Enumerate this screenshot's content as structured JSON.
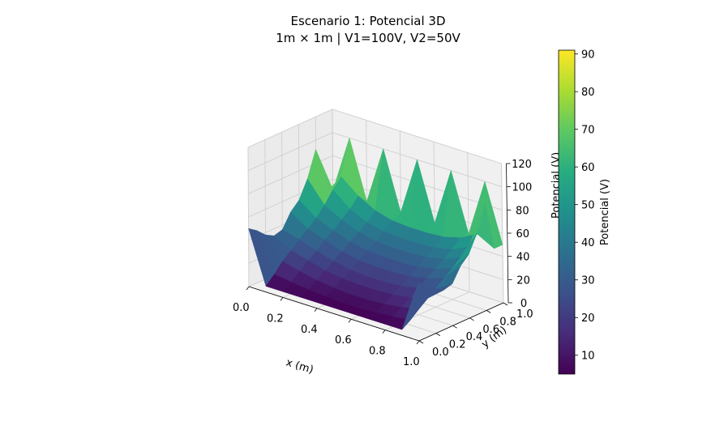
{
  "figure": {
    "title_line1": "Escenario 1: Potencial 3D",
    "title_line2": "1m × 1m | V1=100V, V2=50V"
  },
  "chart_data": {
    "type": "surface3d",
    "title": "Escenario 1: Potencial 3D",
    "subtitle": "1m × 1m | V1=100V, V2=50V",
    "xlabel": "x (m)",
    "ylabel": "y (m)",
    "zlabel": "Potencial (V)",
    "xlim": [
      0,
      1
    ],
    "ylim": [
      0,
      1
    ],
    "zlim": [
      0,
      120
    ],
    "x_ticks": [
      "0.0",
      "0.2",
      "0.4",
      "0.6",
      "0.8",
      "1.0"
    ],
    "y_ticks": [
      "0.0",
      "0.2",
      "0.4",
      "0.6",
      "0.8",
      "1.0"
    ],
    "z_ticks": [
      "0",
      "20",
      "40",
      "60",
      "80",
      "100",
      "120"
    ],
    "x": [
      0,
      0.1,
      0.2,
      0.3,
      0.4,
      0.5,
      0.6,
      0.7,
      0.8,
      0.9,
      1.0
    ],
    "y": [
      0,
      0.1,
      0.2,
      0.3,
      0.4,
      0.5,
      0.6,
      0.7,
      0.8,
      0.9,
      1.0
    ],
    "z_rows_by_y": [
      [
        50,
        5,
        5,
        5,
        5,
        5,
        5,
        5,
        5,
        5,
        50
      ],
      [
        45,
        12,
        10,
        8,
        7,
        6,
        6,
        7,
        8,
        10,
        45
      ],
      [
        38,
        20,
        16,
        13,
        11,
        10,
        10,
        11,
        13,
        16,
        38
      ],
      [
        34,
        26,
        22,
        18,
        16,
        15,
        15,
        16,
        18,
        22,
        34
      ],
      [
        36,
        32,
        27,
        23,
        20,
        19,
        19,
        20,
        23,
        27,
        36
      ],
      [
        48,
        38,
        33,
        28,
        25,
        24,
        24,
        25,
        28,
        33,
        48
      ],
      [
        55,
        44,
        38,
        33,
        30,
        29,
        29,
        30,
        33,
        38,
        55
      ],
      [
        70,
        52,
        44,
        38,
        35,
        34,
        34,
        35,
        38,
        44,
        70
      ],
      [
        92,
        62,
        50,
        43,
        40,
        39,
        39,
        40,
        43,
        50,
        92
      ],
      [
        50,
        70,
        58,
        50,
        46,
        45,
        45,
        46,
        50,
        58,
        50
      ],
      [
        50,
        100,
        50,
        100,
        50,
        100,
        50,
        100,
        50,
        100,
        50
      ]
    ],
    "colormap": "viridis",
    "colorbar": {
      "label": "Potencial (V)",
      "range": [
        5,
        91
      ],
      "ticks": [
        "10",
        "20",
        "30",
        "40",
        "50",
        "60",
        "70",
        "80",
        "90"
      ]
    },
    "grid": true
  }
}
